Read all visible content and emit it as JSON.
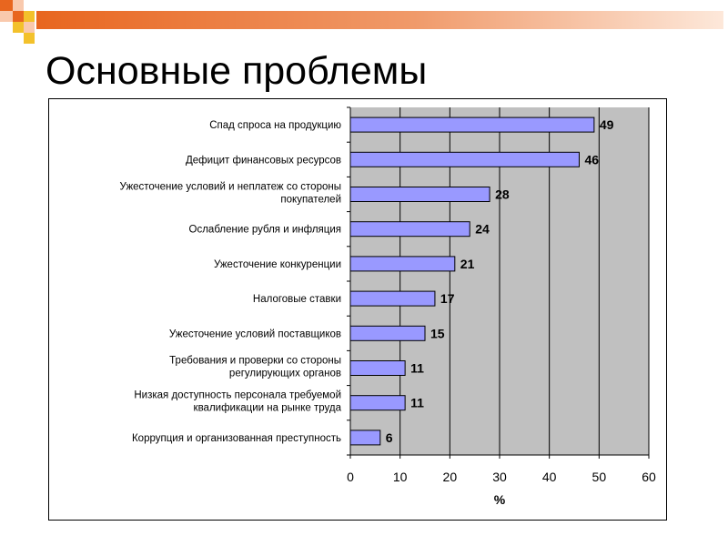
{
  "slide": {
    "title": "Основные проблемы"
  },
  "colors": {
    "bar_fill": "#9999ff",
    "plot_bg": "#c0c0c0",
    "deco_orange": "#e8661f",
    "deco_light": "#f9c9ad",
    "deco_yellow": "#f3c12b"
  },
  "chart_data": {
    "type": "bar",
    "orientation": "horizontal",
    "categories": [
      [
        "Спад спроса на продукцию"
      ],
      [
        "Дефицит финансовых ресурсов"
      ],
      [
        "Ужесточение условий и неплатеж со стороны",
        "покупателей"
      ],
      [
        "Ослабление рубля и инфляция"
      ],
      [
        "Ужесточение конкуренции"
      ],
      [
        "Налоговые ставки"
      ],
      [
        "Ужесточение условий поставщиков"
      ],
      [
        "Требования и проверки со стороны",
        "регулирующих органов"
      ],
      [
        "Низкая доступность персонала требуемой",
        "квалификации на рынке труда"
      ],
      [
        "Коррупция и организованная преступность"
      ]
    ],
    "values": [
      49,
      46,
      28,
      24,
      21,
      17,
      15,
      11,
      11,
      6
    ],
    "xlim": [
      0,
      60
    ],
    "xticks": [
      0,
      10,
      20,
      30,
      40,
      50,
      60
    ],
    "xlabel": "%",
    "ylabel": "",
    "grid": "vertical",
    "legend": "none"
  }
}
